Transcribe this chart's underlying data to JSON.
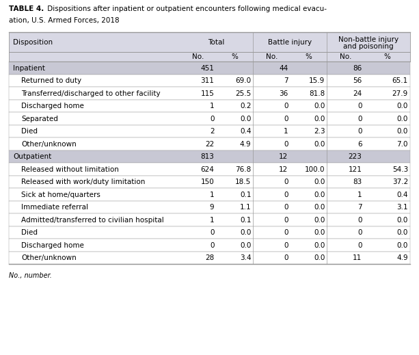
{
  "title_bold": "TABLE 4.",
  "title_rest": " Dispositions after inpatient or outpatient encounters following medical evacu-\nation, U.S. Armed Forces, 2018",
  "section_rows": [
    {
      "label": "Inpatient",
      "values": [
        "451",
        "",
        "44",
        "",
        "86",
        ""
      ],
      "is_section": true
    },
    {
      "label": "Returned to duty",
      "values": [
        "311",
        "69.0",
        "7",
        "15.9",
        "56",
        "65.1"
      ],
      "is_section": false
    },
    {
      "label": "Transferred/discharged to other facility",
      "values": [
        "115",
        "25.5",
        "36",
        "81.8",
        "24",
        "27.9"
      ],
      "is_section": false
    },
    {
      "label": "Discharged home",
      "values": [
        "1",
        "0.2",
        "0",
        "0.0",
        "0",
        "0.0"
      ],
      "is_section": false
    },
    {
      "label": "Separated",
      "values": [
        "0",
        "0.0",
        "0",
        "0.0",
        "0",
        "0.0"
      ],
      "is_section": false
    },
    {
      "label": "Died",
      "values": [
        "2",
        "0.4",
        "1",
        "2.3",
        "0",
        "0.0"
      ],
      "is_section": false
    },
    {
      "label": "Other/unknown",
      "values": [
        "22",
        "4.9",
        "0",
        "0.0",
        "6",
        "7.0"
      ],
      "is_section": false
    },
    {
      "label": "Outpatient",
      "values": [
        "813",
        "",
        "12",
        "",
        "223",
        ""
      ],
      "is_section": true
    },
    {
      "label": "Released without limitation",
      "values": [
        "624",
        "76.8",
        "12",
        "100.0",
        "121",
        "54.3"
      ],
      "is_section": false
    },
    {
      "label": "Released with work/duty limitation",
      "values": [
        "150",
        "18.5",
        "0",
        "0.0",
        "83",
        "37.2"
      ],
      "is_section": false
    },
    {
      "label": "Sick at home/quarters",
      "values": [
        "1",
        "0.1",
        "0",
        "0.0",
        "1",
        "0.4"
      ],
      "is_section": false
    },
    {
      "label": "Immediate referral",
      "values": [
        "9",
        "1.1",
        "0",
        "0.0",
        "7",
        "3.1"
      ],
      "is_section": false
    },
    {
      "label": "Admitted/transferred to civilian hospital",
      "values": [
        "1",
        "0.1",
        "0",
        "0.0",
        "0",
        "0.0"
      ],
      "is_section": false
    },
    {
      "label": "Died",
      "values": [
        "0",
        "0.0",
        "0",
        "0.0",
        "0",
        "0.0"
      ],
      "is_section": false
    },
    {
      "label": "Discharged home",
      "values": [
        "0",
        "0.0",
        "0",
        "0.0",
        "0",
        "0.0"
      ],
      "is_section": false
    },
    {
      "label": "Other/unknown",
      "values": [
        "28",
        "3.4",
        "0",
        "0.0",
        "11",
        "4.9"
      ],
      "is_section": false
    }
  ],
  "footnote": "No., number.",
  "header_bg": "#d8d8e4",
  "section_bg": "#c8c8d4",
  "white_bg": "#ffffff",
  "border_color": "#999999",
  "text_color": "#000000",
  "fig_width": 6.13,
  "fig_height": 5.19,
  "dpi": 100
}
